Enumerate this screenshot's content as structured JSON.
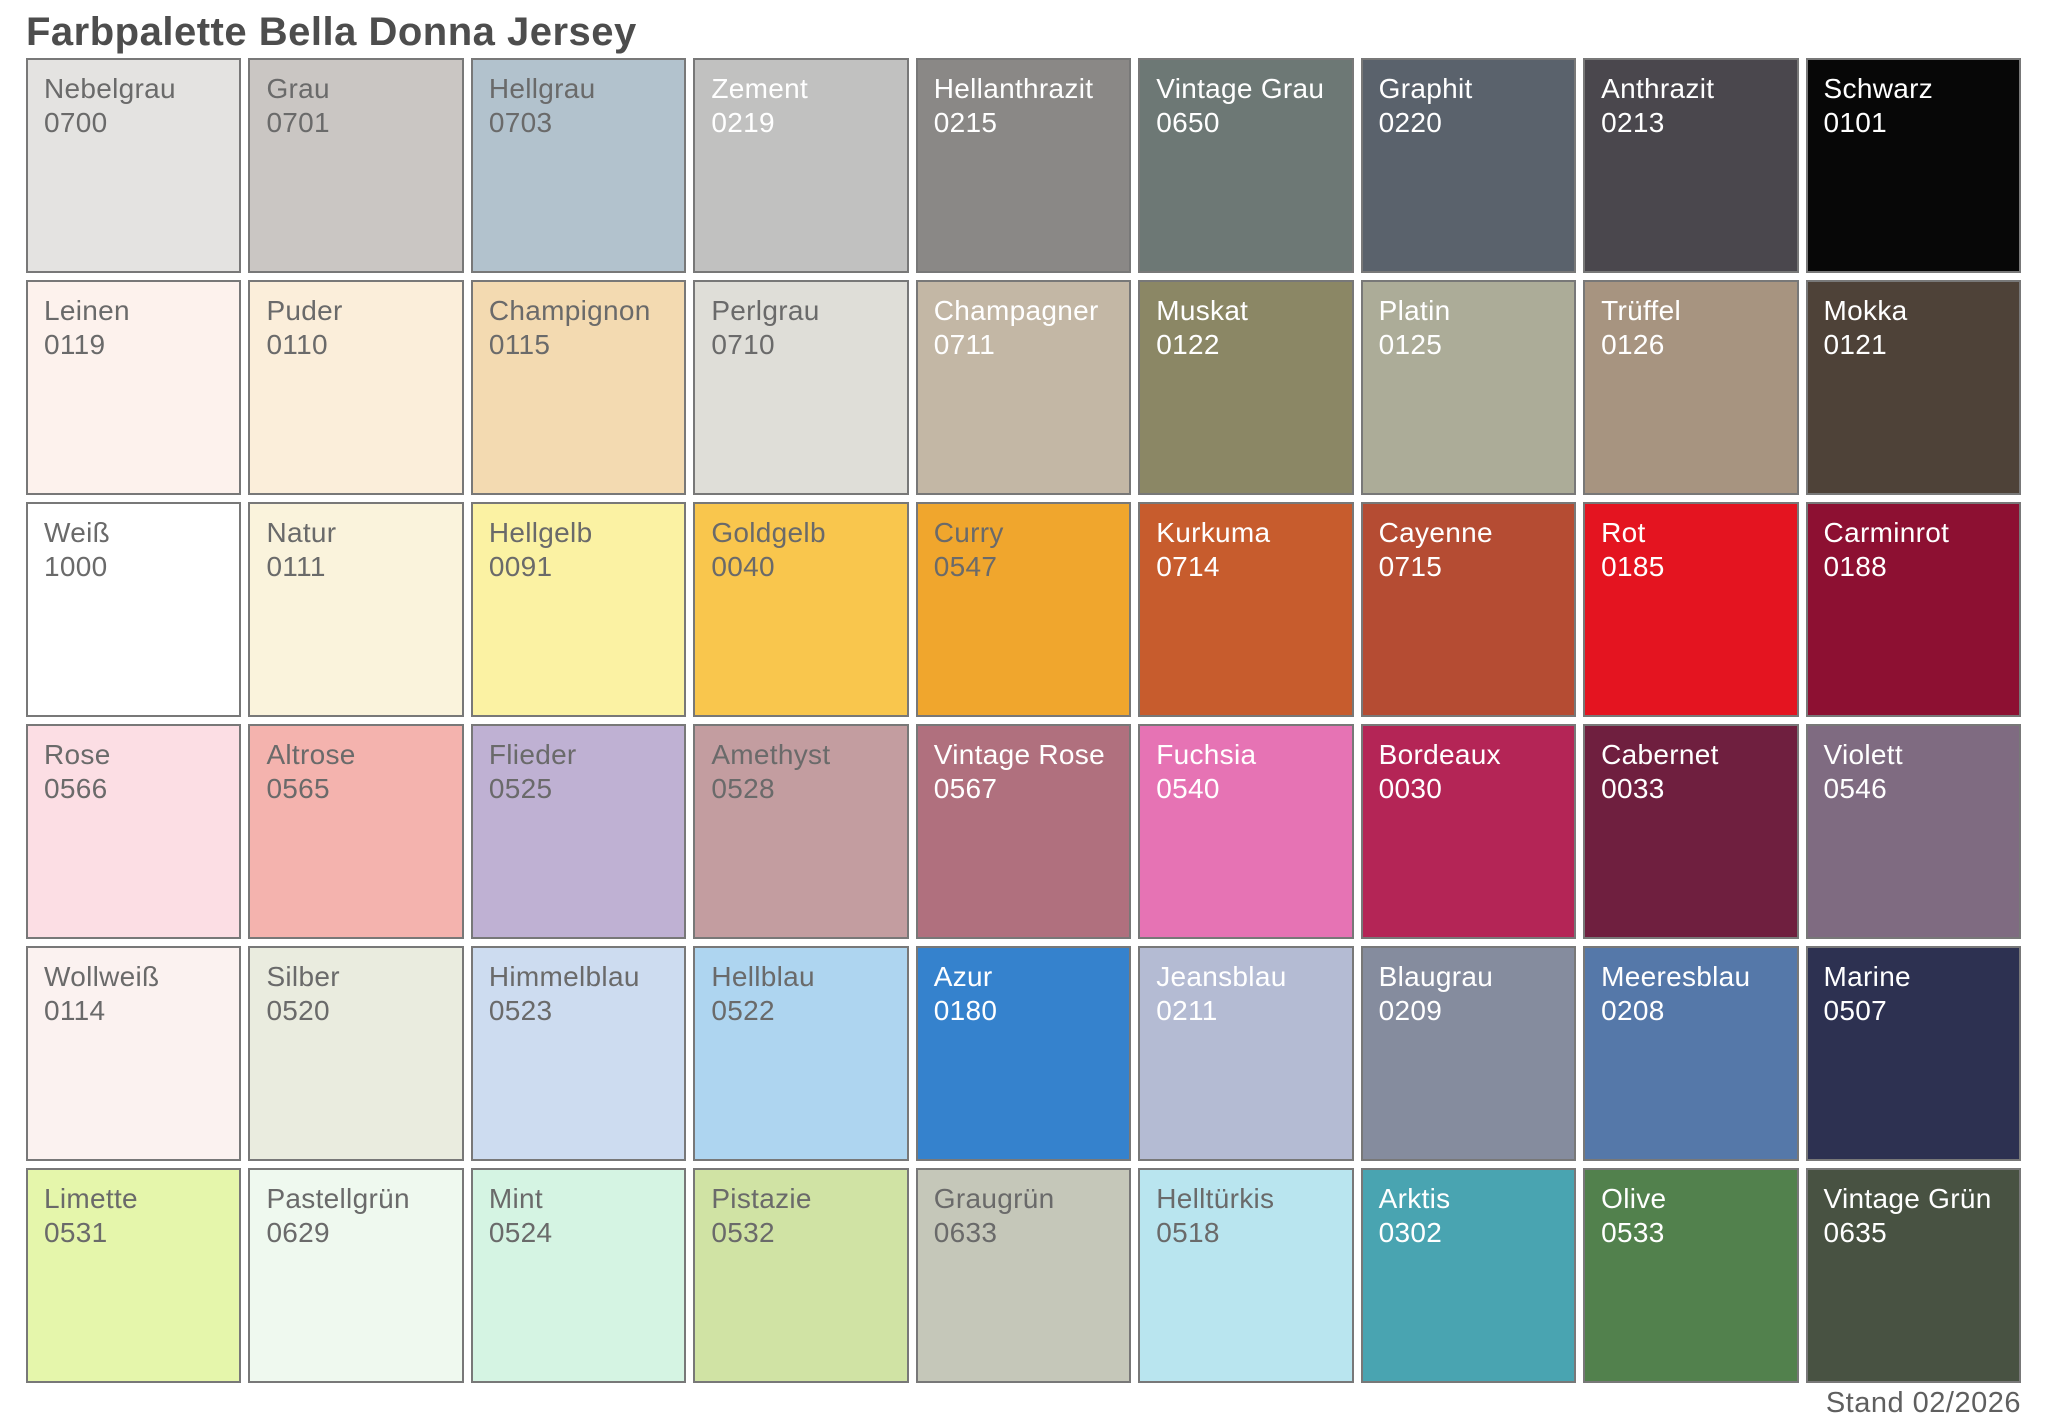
{
  "title": "Farbpalette Bella Donna Jersey",
  "footer": {
    "status": "Stand 02/2026"
  },
  "palette": {
    "columns": 9,
    "rows": 6,
    "border_color": "#787878",
    "text_dark": "#6a6a6a",
    "text_light": "#ffffff",
    "swatches": [
      {
        "name": "Nebelgrau",
        "code": "0700",
        "color": "#e4e3e1",
        "text": "dark"
      },
      {
        "name": "Grau",
        "code": "0701",
        "color": "#cac6c3",
        "text": "dark"
      },
      {
        "name": "Hellgrau",
        "code": "0703",
        "color": "#b2c2cd",
        "text": "dark"
      },
      {
        "name": "Zement",
        "code": "0219",
        "color": "#c1c1c0",
        "text": "light"
      },
      {
        "name": "Hellanthrazit",
        "code": "0215",
        "color": "#8a8886",
        "text": "light"
      },
      {
        "name": "Vintage Grau",
        "code": "0650",
        "color": "#6d7875",
        "text": "light"
      },
      {
        "name": "Graphit",
        "code": "0220",
        "color": "#5a626c",
        "text": "light"
      },
      {
        "name": "Anthrazit",
        "code": "0213",
        "color": "#4a474d",
        "text": "light"
      },
      {
        "name": "Schwarz",
        "code": "0101",
        "color": "#070707",
        "text": "light"
      },
      {
        "name": "Leinen",
        "code": "0119",
        "color": "#fdf2ed",
        "text": "dark"
      },
      {
        "name": "Puder",
        "code": "0110",
        "color": "#fbeeda",
        "text": "dark"
      },
      {
        "name": "Champignon",
        "code": "0115",
        "color": "#f3dab1",
        "text": "dark"
      },
      {
        "name": "Perlgrau",
        "code": "0710",
        "color": "#dfded8",
        "text": "dark"
      },
      {
        "name": "Champagner",
        "code": "0711",
        "color": "#c3b7a5",
        "text": "light"
      },
      {
        "name": "Muskat",
        "code": "0122",
        "color": "#8b8765",
        "text": "light"
      },
      {
        "name": "Platin",
        "code": "0125",
        "color": "#acac98",
        "text": "light"
      },
      {
        "name": "Trüffel",
        "code": "0126",
        "color": "#a79480",
        "text": "light"
      },
      {
        "name": "Mokka",
        "code": "0121",
        "color": "#4e4238",
        "text": "light"
      },
      {
        "name": "Weiß",
        "code": "1000",
        "color": "#ffffff",
        "text": "dark"
      },
      {
        "name": "Natur",
        "code": "0111",
        "color": "#faf3dc",
        "text": "dark"
      },
      {
        "name": "Hellgelb",
        "code": "0091",
        "color": "#fbf2a3",
        "text": "dark"
      },
      {
        "name": "Goldgelb",
        "code": "0040",
        "color": "#f9c64d",
        "text": "dark"
      },
      {
        "name": "Curry",
        "code": "0547",
        "color": "#f0a62d",
        "text": "dark"
      },
      {
        "name": "Kurkuma",
        "code": "0714",
        "color": "#c75c2d",
        "text": "light"
      },
      {
        "name": "Cayenne",
        "code": "0715",
        "color": "#b54c33",
        "text": "light"
      },
      {
        "name": "Rot",
        "code": "0185",
        "color": "#e41420",
        "text": "light"
      },
      {
        "name": "Carminrot",
        "code": "0188",
        "color": "#8d1032",
        "text": "light"
      },
      {
        "name": "Rose",
        "code": "0566",
        "color": "#fcdee4",
        "text": "dark"
      },
      {
        "name": "Altrose",
        "code": "0565",
        "color": "#f4b3ae",
        "text": "dark"
      },
      {
        "name": "Flieder",
        "code": "0525",
        "color": "#bfb1d3",
        "text": "dark"
      },
      {
        "name": "Amethyst",
        "code": "0528",
        "color": "#c39da0",
        "text": "dark"
      },
      {
        "name": "Vintage Rose",
        "code": "0567",
        "color": "#b0707e",
        "text": "light"
      },
      {
        "name": "Fuchsia",
        "code": "0540",
        "color": "#e673b4",
        "text": "light"
      },
      {
        "name": "Bordeaux",
        "code": "0030",
        "color": "#b42556",
        "text": "light"
      },
      {
        "name": "Cabernet",
        "code": "0033",
        "color": "#6f1f3f",
        "text": "light"
      },
      {
        "name": "Violett",
        "code": "0546",
        "color": "#7f6b81",
        "text": "light"
      },
      {
        "name": "Wollweiß",
        "code": "0114",
        "color": "#fbf2f0",
        "text": "dark"
      },
      {
        "name": "Silber",
        "code": "0520",
        "color": "#eaecdf",
        "text": "dark"
      },
      {
        "name": "Himmelblau",
        "code": "0523",
        "color": "#cddcf0",
        "text": "dark"
      },
      {
        "name": "Hellblau",
        "code": "0522",
        "color": "#aed5f0",
        "text": "dark"
      },
      {
        "name": "Azur",
        "code": "0180",
        "color": "#3582cd",
        "text": "light"
      },
      {
        "name": "Jeansblau",
        "code": "0211",
        "color": "#b4bbd3",
        "text": "light"
      },
      {
        "name": "Blaugrau",
        "code": "0209",
        "color": "#858c9e",
        "text": "light"
      },
      {
        "name": "Meeresblau",
        "code": "0208",
        "color": "#5578a9",
        "text": "light"
      },
      {
        "name": "Marine",
        "code": "0507",
        "color": "#2d3151",
        "text": "light"
      },
      {
        "name": "Limette",
        "code": "0531",
        "color": "#e5f6ab",
        "text": "dark"
      },
      {
        "name": "Pastellgrün",
        "code": "0629",
        "color": "#eff9ef",
        "text": "dark"
      },
      {
        "name": "Mint",
        "code": "0524",
        "color": "#d5f4e3",
        "text": "dark"
      },
      {
        "name": "Pistazie",
        "code": "0532",
        "color": "#d0e3a4",
        "text": "dark"
      },
      {
        "name": "Graugrün",
        "code": "0633",
        "color": "#c5c7b9",
        "text": "dark"
      },
      {
        "name": "Helltürkis",
        "code": "0518",
        "color": "#b9e5ef",
        "text": "dark"
      },
      {
        "name": "Arktis",
        "code": "0302",
        "color": "#49a4b1",
        "text": "light"
      },
      {
        "name": "Olive",
        "code": "0533",
        "color": "#52814d",
        "text": "light"
      },
      {
        "name": "Vintage Grün",
        "code": "0635",
        "color": "#485242",
        "text": "light"
      }
    ]
  }
}
